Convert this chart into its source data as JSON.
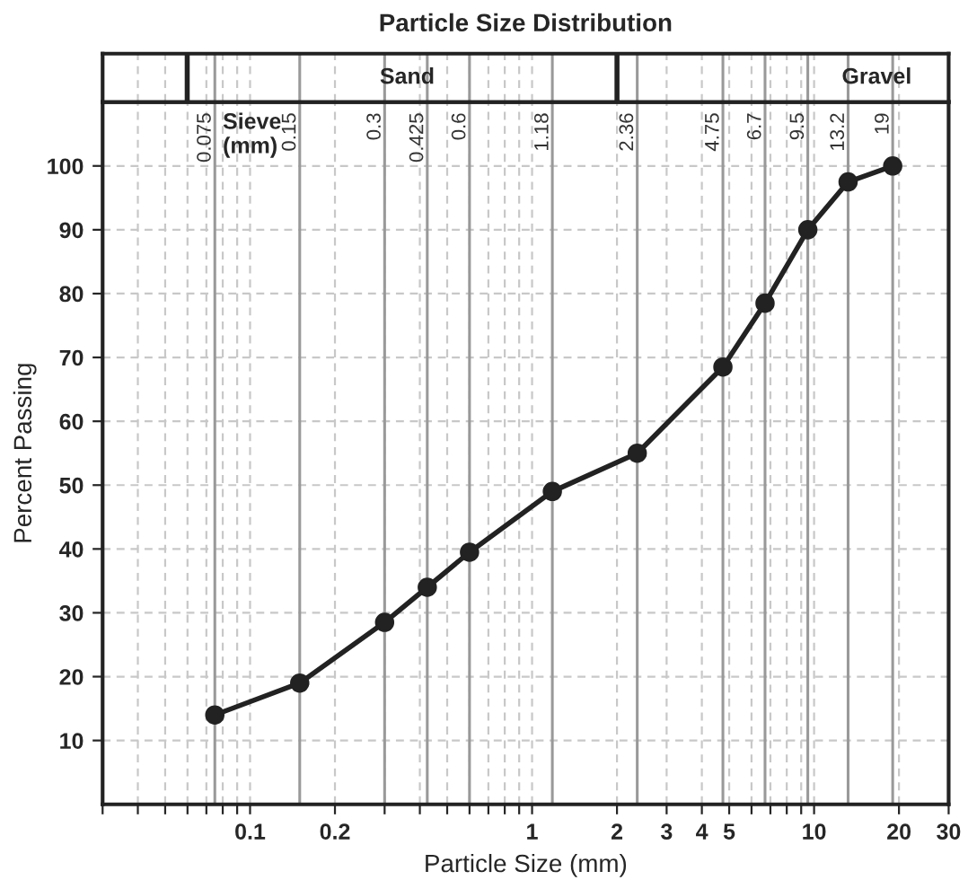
{
  "chart_data": {
    "type": "line",
    "title": "Particle Size Distribution",
    "xlabel": "Particle Size (mm)",
    "ylabel": "Percent Passing",
    "annotations": [
      "Sieve\n(mm)",
      "Sand",
      "Gravel"
    ],
    "x": [
      0.075,
      0.15,
      0.3,
      0.425,
      0.6,
      1.18,
      2.36,
      4.75,
      6.7,
      9.5,
      13.2,
      19
    ],
    "series": [
      {
        "color": "#222222",
        "values": [
          14,
          19,
          28.5,
          34,
          39.5,
          49,
          55,
          68.5,
          78.5,
          90,
          97.5,
          100
        ]
      }
    ],
    "marker": "circle",
    "line_style": "solid",
    "log": "x",
    "grid": true,
    "xlim": [
      0.03,
      30
    ],
    "ylim": [
      0,
      110
    ],
    "xticks": [
      {
        "value": 0.03,
        "label": null
      },
      {
        "value": 0.04,
        "label": null
      },
      {
        "value": 0.05,
        "label": null
      },
      {
        "value": 0.06,
        "label": null
      },
      {
        "value": 0.07,
        "label": null
      },
      {
        "value": 0.08,
        "label": null
      },
      {
        "value": 0.09,
        "label": null
      },
      0.1,
      0.2,
      {
        "value": 0.3,
        "label": null
      },
      {
        "value": 0.4,
        "label": null
      },
      {
        "value": 0.5,
        "label": null
      },
      {
        "value": 0.6,
        "label": null
      },
      {
        "value": 0.7,
        "label": null
      },
      {
        "value": 0.8,
        "label": null
      },
      {
        "value": 0.9,
        "label": null
      },
      1,
      2,
      3,
      4,
      5,
      {
        "value": 6,
        "label": null
      },
      {
        "value": 7,
        "label": null
      },
      {
        "value": 8,
        "label": null
      },
      {
        "value": 9,
        "label": null
      },
      10,
      20,
      30
    ],
    "yticks": [
      10,
      20,
      30,
      40,
      50,
      60,
      70,
      80,
      90,
      100
    ],
    "ref_lines": [
      {
        "axis": "x",
        "value": 0.075,
        "label": "0.075",
        "color": "#999999"
      },
      {
        "axis": "x",
        "value": 0.15,
        "label": "0.15",
        "color": "#999999"
      },
      {
        "axis": "x",
        "value": 0.3,
        "label": "0.3",
        "color": "#999999"
      },
      {
        "axis": "x",
        "value": 0.425,
        "label": "0.425",
        "color": "#999999"
      },
      {
        "axis": "x",
        "value": 0.6,
        "label": "0.6",
        "color": "#999999"
      },
      {
        "axis": "x",
        "value": 1.18,
        "label": "1.18",
        "color": "#999999"
      },
      {
        "axis": "x",
        "value": 2.36,
        "label": "2.36",
        "color": "#999999"
      },
      {
        "axis": "x",
        "value": 4.75,
        "label": "4.75",
        "color": "#999999"
      },
      {
        "axis": "x",
        "value": 6.7,
        "label": "6.7",
        "color": "#999999"
      },
      {
        "axis": "x",
        "value": 9.5,
        "label": "9.5",
        "color": "#999999"
      },
      {
        "axis": "x",
        "value": 13.2,
        "label": "13.2",
        "color": "#999999"
      },
      {
        "axis": "x",
        "value": 19,
        "label": "19",
        "color": "#999999"
      }
    ]
  }
}
